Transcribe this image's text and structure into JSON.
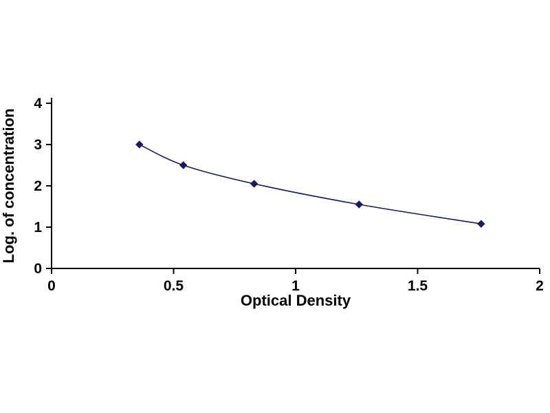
{
  "chart_data": {
    "type": "scatter",
    "title": "",
    "xlabel": "Optical Density",
    "ylabel": "Log. of concentration",
    "x": [
      0.36,
      0.54,
      0.83,
      1.26,
      1.76
    ],
    "y": [
      3.0,
      2.5,
      2.05,
      1.55,
      1.08
    ],
    "xlim": [
      0,
      2
    ],
    "ylim": [
      0,
      4
    ],
    "xticks": [
      0,
      0.5,
      1,
      1.5,
      2
    ],
    "xtick_labels": [
      "0",
      "0.5",
      "1",
      "1.5",
      "2"
    ],
    "yticks": [
      0,
      1,
      2,
      3,
      4
    ],
    "ytick_labels": [
      "0",
      "1",
      "2",
      "3",
      "4"
    ],
    "grid": false,
    "legend": false,
    "marker": "diamond",
    "line_color": "#1a1a5e",
    "marker_color": "#1a1a5e",
    "axis_color": "#000000",
    "text_color": "#000000",
    "background": "#ffffff"
  }
}
